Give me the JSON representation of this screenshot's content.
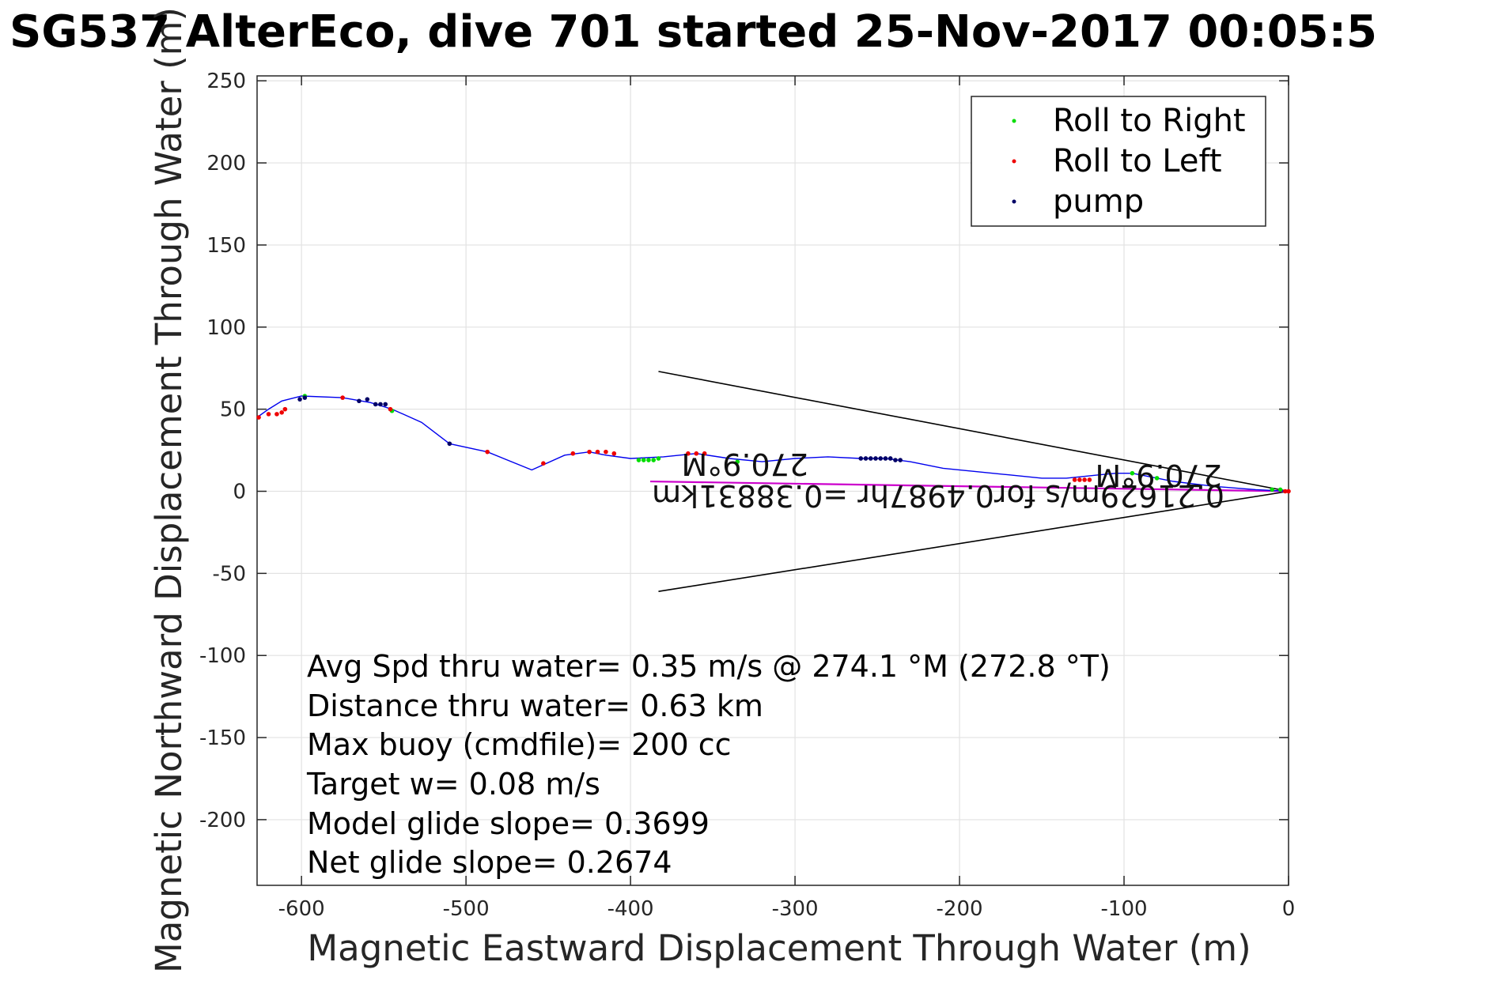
{
  "chart_data": {
    "type": "line",
    "title": "SG537 AlterEco, dive 701 started 25-Nov-2017 00:05:5",
    "xlabel": "Magnetic Eastward Displacement Through Water (m)",
    "ylabel": "Magnetic Northward Displacement Through Water (m)",
    "xlim": [
      -627,
      0
    ],
    "ylim": [
      -240,
      253
    ],
    "x_ticks": [
      -600,
      -500,
      -400,
      -300,
      -200,
      -100,
      0
    ],
    "y_ticks": [
      250,
      200,
      150,
      100,
      50,
      0,
      -50,
      -100,
      -150,
      -200
    ],
    "grid": true,
    "legend_placement": "top-right",
    "legend": [
      "Roll to Right",
      "Roll to Left",
      "pump"
    ],
    "colors": {
      "track": "#0000ee",
      "roll_right": "#00dd00",
      "roll_left": "#ee0000",
      "pump": "#000066",
      "current": "#cc00cc",
      "cone": "#000000"
    },
    "track": [
      [
        0,
        0
      ],
      [
        -20,
        1
      ],
      [
        -45,
        3
      ],
      [
        -70,
        6
      ],
      [
        -85,
        9
      ],
      [
        -95,
        11
      ],
      [
        -105,
        11
      ],
      [
        -115,
        10
      ],
      [
        -135,
        8
      ],
      [
        -150,
        8
      ],
      [
        -170,
        10
      ],
      [
        -190,
        12
      ],
      [
        -210,
        14
      ],
      [
        -230,
        18
      ],
      [
        -245,
        20
      ],
      [
        -260,
        20
      ],
      [
        -280,
        21
      ],
      [
        -300,
        20
      ],
      [
        -320,
        18
      ],
      [
        -340,
        20
      ],
      [
        -360,
        23
      ],
      [
        -380,
        21
      ],
      [
        -400,
        20
      ],
      [
        -415,
        22
      ],
      [
        -425,
        24
      ],
      [
        -440,
        22
      ],
      [
        -460,
        13
      ],
      [
        -487,
        24
      ],
      [
        -510,
        29
      ],
      [
        -527,
        42
      ],
      [
        -545,
        50
      ],
      [
        -558,
        54
      ],
      [
        -575,
        57
      ],
      [
        -600,
        58
      ],
      [
        -612,
        55
      ],
      [
        -620,
        50
      ],
      [
        -627,
        45
      ]
    ],
    "roll_right_points": [
      [
        -395,
        19
      ],
      [
        -392,
        19
      ],
      [
        -389,
        19
      ],
      [
        -386,
        19
      ],
      [
        -383,
        20
      ],
      [
        -335,
        18
      ],
      [
        -95,
        11
      ],
      [
        -80,
        8
      ],
      [
        -10,
        1
      ],
      [
        -5,
        1
      ],
      [
        -598,
        58
      ],
      [
        -545,
        49
      ]
    ],
    "roll_left_points": [
      [
        -626,
        45
      ],
      [
        -620,
        47
      ],
      [
        -615,
        47
      ],
      [
        -612,
        48
      ],
      [
        -610,
        50
      ],
      [
        -575,
        57
      ],
      [
        -546,
        50
      ],
      [
        -487,
        24
      ],
      [
        -453,
        17
      ],
      [
        -435,
        23
      ],
      [
        -425,
        24
      ],
      [
        -420,
        24
      ],
      [
        -415,
        24
      ],
      [
        -410,
        23
      ],
      [
        -365,
        23
      ],
      [
        -360,
        23
      ],
      [
        -355,
        23
      ],
      [
        -130,
        7
      ],
      [
        -127,
        7
      ],
      [
        -124,
        7
      ],
      [
        -121,
        7
      ],
      [
        0,
        0
      ],
      [
        -2,
        0
      ]
    ],
    "pump_points": [
      [
        -601,
        56
      ],
      [
        -598,
        57
      ],
      [
        -565,
        55
      ],
      [
        -560,
        56
      ],
      [
        -555,
        53
      ],
      [
        -552,
        53
      ],
      [
        -549,
        53
      ],
      [
        -510,
        29
      ],
      [
        -260,
        20
      ],
      [
        -257,
        20
      ],
      [
        -254,
        20
      ],
      [
        -251,
        20
      ],
      [
        -248,
        20
      ],
      [
        -245,
        20
      ],
      [
        -242,
        20
      ],
      [
        -239,
        19
      ],
      [
        -236,
        19
      ]
    ],
    "current_line": [
      [
        0,
        0
      ],
      [
        -388,
        6
      ]
    ],
    "cone_lines": [
      [
        [
          0,
          0
        ],
        [
          -383,
          73
        ]
      ],
      [
        [
          0,
          0
        ],
        [
          -383,
          -61
        ]
      ]
    ],
    "annotations": {
      "heading_label_near": "270.9°M",
      "heading_label_far": "270.9°M",
      "current_label": "0.21629m/s for0.4987hr =0.38831km"
    },
    "stats": [
      "Avg Spd thru water=  0.35 m/s @ 274.1 °M (272.8 °T)",
      "Distance thru water=  0.63 km",
      "Max buoy (cmdfile)= 200 cc",
      "Target w= 0.08 m/s",
      "Model glide slope= 0.3699",
      "Net glide slope= 0.2674"
    ]
  }
}
